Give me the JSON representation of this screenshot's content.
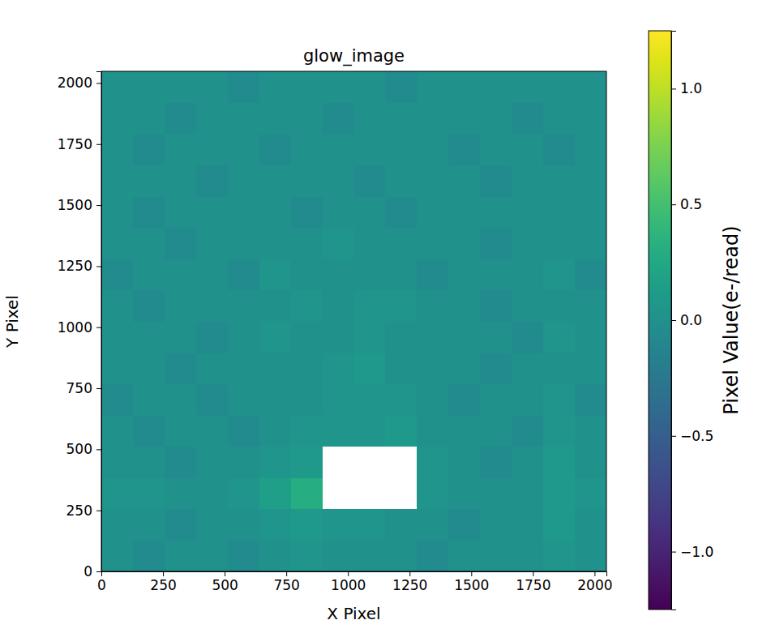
{
  "chart_data": {
    "type": "heatmap",
    "title": "glow_image",
    "x_label": "X Pixel",
    "y_label": "Y Pixel",
    "xlim": [
      0,
      2048
    ],
    "ylim": [
      0,
      2048
    ],
    "xticks": [
      0,
      250,
      500,
      750,
      1000,
      1250,
      1500,
      1750,
      2000
    ],
    "yticks": [
      0,
      250,
      500,
      750,
      1000,
      1250,
      1500,
      1750,
      2000
    ],
    "color": "viridis",
    "x_bins": [
      0,
      128,
      256,
      384,
      512,
      640,
      768,
      896,
      1024,
      1152,
      1280,
      1408,
      1536,
      1664,
      1792,
      1920,
      2048
    ],
    "y_bins": [
      0,
      128,
      256,
      384,
      512,
      640,
      768,
      896,
      1024,
      1152,
      1280,
      1408,
      1536,
      1664,
      1792,
      1920,
      2048
    ],
    "cells": [
      [
        0.0,
        -0.05,
        0.0,
        0.0,
        -0.05,
        0.0,
        0.05,
        0.0,
        0.0,
        0.0,
        -0.05,
        0.0,
        0.0,
        0.0,
        0.05,
        0.0
      ],
      [
        0.0,
        0.0,
        -0.05,
        0.0,
        0.0,
        0.05,
        0.1,
        0.05,
        0.05,
        0.0,
        0.0,
        -0.05,
        0.0,
        0.0,
        0.1,
        0.0
      ],
      [
        0.05,
        0.05,
        0.0,
        0.0,
        0.05,
        0.15,
        0.3,
        null,
        null,
        null,
        0.05,
        0.0,
        0.0,
        0.0,
        0.1,
        0.05
      ],
      [
        0.0,
        0.0,
        -0.05,
        0.0,
        0.0,
        0.05,
        0.1,
        null,
        null,
        null,
        0.05,
        0.0,
        -0.05,
        0.0,
        0.1,
        0.0
      ],
      [
        0.0,
        -0.05,
        0.0,
        0.0,
        -0.05,
        0.0,
        0.05,
        0.05,
        0.05,
        0.1,
        0.0,
        0.0,
        0.0,
        -0.05,
        0.05,
        0.0
      ],
      [
        -0.05,
        0.0,
        0.0,
        -0.05,
        0.0,
        0.0,
        0.0,
        0.05,
        0.05,
        0.05,
        0.0,
        -0.05,
        0.0,
        0.0,
        0.05,
        -0.05
      ],
      [
        0.0,
        0.0,
        -0.05,
        0.0,
        0.0,
        0.0,
        0.0,
        0.05,
        0.1,
        0.0,
        0.0,
        0.0,
        -0.05,
        0.0,
        0.0,
        0.0
      ],
      [
        0.0,
        0.0,
        0.0,
        -0.05,
        0.0,
        0.05,
        0.0,
        0.0,
        0.05,
        0.0,
        0.0,
        0.0,
        0.0,
        -0.05,
        0.05,
        0.0
      ],
      [
        0.0,
        -0.05,
        0.0,
        0.0,
        0.0,
        0.0,
        0.05,
        0.0,
        0.05,
        0.05,
        0.0,
        0.0,
        -0.05,
        0.0,
        0.0,
        0.0
      ],
      [
        -0.05,
        0.0,
        0.0,
        0.0,
        -0.05,
        0.05,
        0.0,
        0.0,
        0.0,
        0.0,
        -0.05,
        0.0,
        0.0,
        0.0,
        0.05,
        -0.05
      ],
      [
        0.0,
        0.0,
        -0.05,
        0.0,
        0.0,
        0.0,
        0.0,
        0.05,
        0.0,
        0.0,
        0.0,
        0.0,
        -0.05,
        0.0,
        0.0,
        0.0
      ],
      [
        0.0,
        -0.05,
        0.0,
        0.0,
        0.0,
        0.0,
        -0.05,
        0.0,
        0.0,
        -0.05,
        0.0,
        0.0,
        0.0,
        0.0,
        0.0,
        0.0
      ],
      [
        0.0,
        0.0,
        0.0,
        -0.05,
        0.0,
        0.0,
        0.0,
        0.0,
        -0.05,
        0.0,
        0.0,
        0.0,
        -0.05,
        0.0,
        0.0,
        0.0
      ],
      [
        0.0,
        -0.05,
        0.0,
        0.0,
        0.0,
        -0.05,
        0.0,
        0.0,
        0.0,
        0.0,
        0.0,
        -0.05,
        0.0,
        0.0,
        -0.05,
        0.0
      ],
      [
        0.0,
        0.0,
        -0.05,
        0.0,
        0.0,
        0.0,
        0.0,
        -0.05,
        0.0,
        0.0,
        0.0,
        0.0,
        0.0,
        -0.05,
        0.0,
        0.0
      ],
      [
        0.0,
        0.0,
        0.0,
        0.0,
        -0.05,
        0.0,
        0.0,
        0.0,
        0.0,
        -0.05,
        0.0,
        0.0,
        0.0,
        0.0,
        0.0,
        0.0
      ]
    ],
    "colorbar": {
      "label": "Pixel Value(e-/read)",
      "lim": [
        -1.25,
        1.25
      ],
      "ticks": [
        {
          "value": -1,
          "label": "−1.0"
        },
        {
          "value": -0.5,
          "label": "−0.5"
        },
        {
          "value": 0,
          "label": "0.0"
        },
        {
          "value": 0.5,
          "label": "0.5"
        },
        {
          "value": 1,
          "label": "1.0"
        }
      ]
    }
  }
}
